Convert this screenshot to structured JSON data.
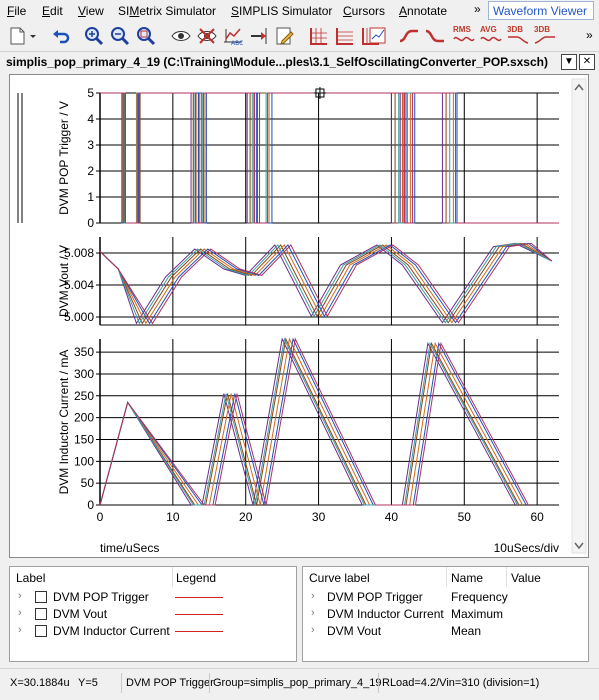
{
  "menu": {
    "items": [
      {
        "label": "File",
        "u": "F"
      },
      {
        "label": "Edit",
        "u": "E"
      },
      {
        "label": "View",
        "u": "V"
      },
      {
        "label": "SIMetrix Simulator",
        "u": "M"
      },
      {
        "label": "SIMPLIS Simulator",
        "u": "S"
      },
      {
        "label": "Cursors",
        "u": "C"
      },
      {
        "label": "Annotate",
        "u": "A"
      }
    ],
    "overflow": "»",
    "viewer": "Waveform Viewer"
  },
  "toolbar": {
    "icons": [
      "new-icon",
      "dropdown-arrow-icon",
      "undo-icon",
      "zoom-in-icon",
      "zoom-out-icon",
      "zoom-fit-icon",
      "eye-icon",
      "eye-hide-icon",
      "label-icon",
      "marker-icon",
      "edit-icon",
      "grid-icon",
      "grid2-icon",
      "grid3-icon",
      "chart-icon",
      "rise-icon",
      "fall-icon",
      "rms-icon",
      "avg-icon",
      "3db-icon",
      "3db2-icon"
    ],
    "rms": "RMS",
    "avg": "AVG",
    "db1": "3DB",
    "db2": "3DB",
    "overflow": "»"
  },
  "window": {
    "title": "simplis_pop_primary_4_19 (C:\\Training\\Module...ples\\3.1_SelfOscillatingConverter_POP.sxsch)"
  },
  "plots": {
    "x_axis": {
      "label": "time/uSecs",
      "ticks": [
        "0",
        "10",
        "20",
        "30",
        "40",
        "50",
        "60"
      ],
      "div_label": "10uSecs/div"
    },
    "trigger": {
      "ylabel": "DVM POP Trigger / V",
      "ticks": [
        "0",
        "1",
        "2",
        "3",
        "4",
        "5"
      ]
    },
    "vout": {
      "ylabel": "DVM Vout / V",
      "ticks": [
        "5.000",
        "5.004",
        "5.008"
      ]
    },
    "current": {
      "ylabel": "DVM Inductor Current / mA",
      "ticks": [
        "0",
        "50",
        "100",
        "150",
        "200",
        "250",
        "300",
        "350"
      ]
    }
  },
  "chart_data": {
    "type": "line",
    "xlabel": "time/uSecs",
    "xlim": [
      0,
      63
    ],
    "colors": [
      "#6a2d8f",
      "#8b4513",
      "#d2691e",
      "#1f4fbf",
      "#3aa0a0",
      "#b03060"
    ],
    "subplots": [
      {
        "ylabel": "DVM POP Trigger / V",
        "ylim": [
          0,
          5
        ]
      },
      {
        "ylabel": "DVM Vout / V",
        "ylim": [
          4.999,
          5.01
        ]
      },
      {
        "ylabel": "DVM Inductor Current / mA",
        "ylim": [
          0,
          380
        ]
      }
    ]
  },
  "legend_panel": {
    "headers": [
      "Label",
      "Legend"
    ],
    "rows": [
      "DVM POP Trigger",
      "DVM Vout",
      "DVM Inductor Current"
    ]
  },
  "measure_panel": {
    "headers": [
      "Curve label",
      "Name",
      "Value"
    ],
    "rows": [
      {
        "label": "DVM POP Trigger",
        "name": "Frequency",
        "value": ""
      },
      {
        "label": "DVM Inductor Current",
        "name": "Maximum",
        "value": ""
      },
      {
        "label": "DVM Vout",
        "name": "Mean",
        "value": ""
      }
    ]
  },
  "status": {
    "x": "X=30.1884u",
    "y": "Y=5",
    "curve": "DVM POP Trigger",
    "group": "Group=simplis_pop_primary_4_19",
    "params": "RLoad=4.2/Vin=310 (division=1)"
  },
  "colors": {
    "accent": "#2156c8",
    "legend_line": "#d02020"
  }
}
